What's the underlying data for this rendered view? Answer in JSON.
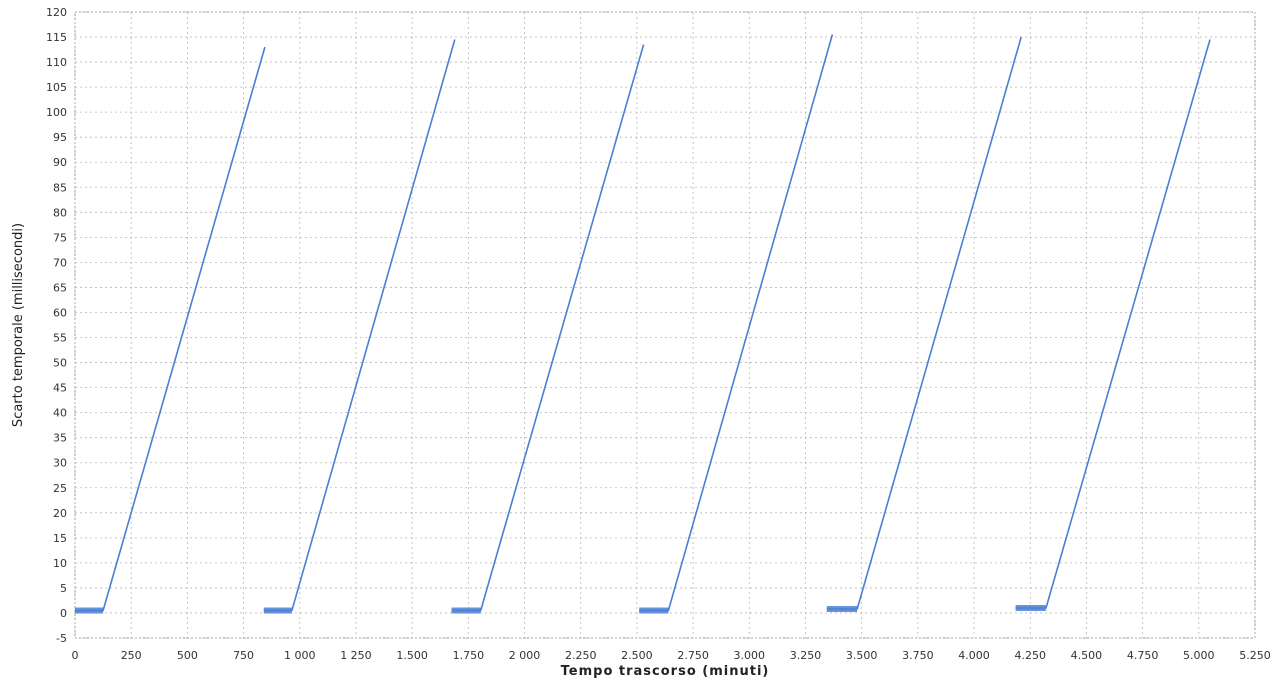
{
  "chart_data": {
    "type": "line",
    "title": "",
    "xlabel": "Tempo trascorso (minuti)",
    "ylabel": "Scarto temporale (millisecondi)",
    "xlim": [
      0,
      5250
    ],
    "ylim": [
      -5,
      120
    ],
    "xticks": [
      0,
      250,
      500,
      750,
      1000,
      1250,
      1500,
      1750,
      2000,
      2250,
      2500,
      2750,
      3000,
      3250,
      3500,
      3750,
      4000,
      4250,
      4500,
      4750,
      5000,
      5250
    ],
    "xtick_labels": [
      "0",
      "250",
      "500",
      "750",
      "1 000",
      "1 250",
      "1.500",
      "1.750",
      "2 000",
      "2.250",
      "2.500",
      "2.750",
      "3.000",
      "3.250",
      "3.500",
      "3.750",
      "4.000",
      "4.250",
      "4.500",
      "4.750",
      "5.000",
      "5.250"
    ],
    "yticks": [
      -5,
      0,
      5,
      10,
      15,
      20,
      25,
      30,
      35,
      40,
      45,
      50,
      55,
      60,
      65,
      70,
      75,
      80,
      85,
      90,
      95,
      100,
      105,
      110,
      115,
      120
    ],
    "grid": true,
    "series_color": "#4a7fd4",
    "series": [
      {
        "segments": [
          [
            [
              0,
              0.5
            ],
            [
              125,
              0.5
            ],
            [
              845,
              113
            ]
          ],
          [
            [
              840,
              0.5
            ],
            [
              965,
              0.5
            ],
            [
              1690,
              114.5
            ]
          ],
          [
            [
              1675,
              0.5
            ],
            [
              1805,
              0.5
            ],
            [
              2530,
              113.5
            ]
          ],
          [
            [
              2510,
              0.5
            ],
            [
              2640,
              0.5
            ],
            [
              3370,
              115.5
            ]
          ],
          [
            [
              3345,
              0.8
            ],
            [
              3480,
              0.8
            ],
            [
              4210,
              115
            ]
          ],
          [
            [
              4185,
              1
            ],
            [
              4320,
              1
            ],
            [
              5050,
              114.5
            ]
          ]
        ]
      }
    ]
  }
}
